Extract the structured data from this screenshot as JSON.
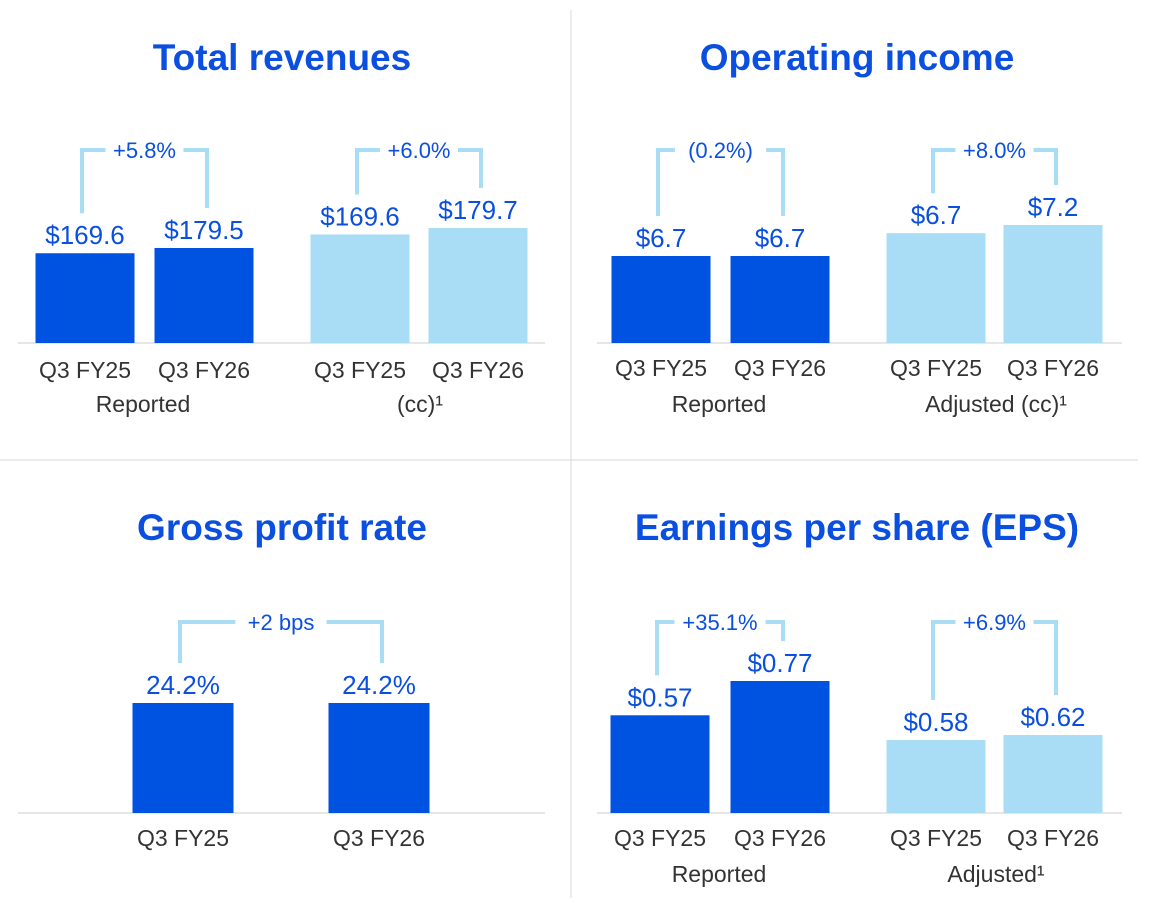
{
  "colors": {
    "dark": "#0052e0",
    "light": "#a9dcf5",
    "bracket": "#a9dcf5",
    "title": "#0a4fe0",
    "value": "#0a4fe0",
    "axis_text": "#333333",
    "axis_line": "#cccccc",
    "divider": "#d9d9d9"
  },
  "chart_data": [
    {
      "type": "bar",
      "title": "Total revenues",
      "unit": "$B",
      "groups": [
        {
          "label": "Reported",
          "shade": "dark",
          "change_label": "+5.8%",
          "categories": [
            "Q3 FY25",
            "Q3 FY26"
          ],
          "values": [
            169.6,
            179.5
          ],
          "value_labels": [
            "$169.6",
            "$179.5"
          ]
        },
        {
          "label": "(cc)¹",
          "shade": "light",
          "change_label": "+6.0%",
          "categories": [
            "Q3 FY25",
            "Q3 FY26"
          ],
          "values": [
            169.6,
            179.7
          ],
          "value_labels": [
            "$169.6",
            "$179.7"
          ]
        }
      ]
    },
    {
      "type": "bar",
      "title": "Operating income",
      "unit": "$B",
      "groups": [
        {
          "label": "Reported",
          "shade": "dark",
          "change_label": "(0.2%)",
          "categories": [
            "Q3 FY25",
            "Q3 FY26"
          ],
          "values": [
            6.7,
            6.7
          ],
          "value_labels": [
            "$6.7",
            "$6.7"
          ]
        },
        {
          "label": "Adjusted (cc)¹",
          "shade": "light",
          "change_label": "+8.0%",
          "categories": [
            "Q3 FY25",
            "Q3 FY26"
          ],
          "values": [
            6.7,
            7.2
          ],
          "value_labels": [
            "$6.7",
            "$7.2"
          ]
        }
      ]
    },
    {
      "type": "bar",
      "title": "Gross profit rate",
      "unit": "%",
      "groups": [
        {
          "label": "",
          "shade": "dark",
          "change_label": "+2 bps",
          "categories": [
            "Q3 FY25",
            "Q3 FY26"
          ],
          "values": [
            24.2,
            24.2
          ],
          "value_labels": [
            "24.2%",
            "24.2%"
          ]
        }
      ]
    },
    {
      "type": "bar",
      "title": "Earnings per share (EPS)",
      "unit": "$",
      "groups": [
        {
          "label": "Reported",
          "shade": "dark",
          "change_label": "+35.1%",
          "categories": [
            "Q3 FY25",
            "Q3 FY26"
          ],
          "values": [
            0.57,
            0.77
          ],
          "value_labels": [
            "$0.57",
            "$0.77"
          ]
        },
        {
          "label": "Adjusted¹",
          "shade": "light",
          "change_label": "+6.9%",
          "categories": [
            "Q3 FY25",
            "Q3 FY26"
          ],
          "values": [
            0.58,
            0.62
          ],
          "value_labels": [
            "$0.58",
            "$0.62"
          ]
        }
      ]
    }
  ]
}
